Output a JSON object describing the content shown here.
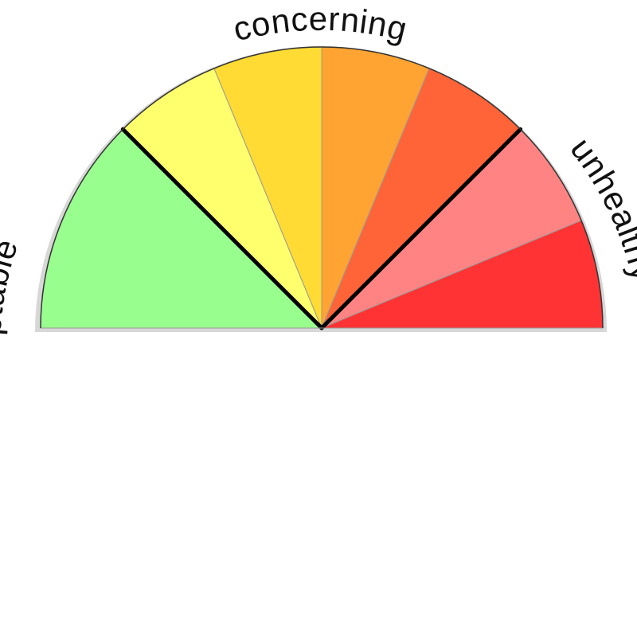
{
  "gauge": {
    "zones": [
      {
        "label": "Acceptable",
        "segments": 1
      },
      {
        "label": "concerning",
        "segments": 4
      },
      {
        "label": "unhealthy",
        "segments": 2
      }
    ],
    "segments": [
      {
        "color": "#98ff8f",
        "zone": "Acceptable",
        "degrees": 45
      },
      {
        "color": "#ffff6e",
        "zone": "concerning",
        "degrees": 22.5
      },
      {
        "color": "#ffdb33",
        "zone": "concerning",
        "degrees": 22.5
      },
      {
        "color": "#ffa332",
        "zone": "concerning",
        "degrees": 22.5
      },
      {
        "color": "#ff6338",
        "zone": "concerning",
        "degrees": 22.5
      },
      {
        "color": "#ff8383",
        "zone": "unhealthy",
        "degrees": 22.5
      },
      {
        "color": "#ff3333",
        "zone": "unhealthy",
        "degrees": 22.5
      }
    ],
    "outline_color": "#000000",
    "shadow_color": "#777777"
  }
}
